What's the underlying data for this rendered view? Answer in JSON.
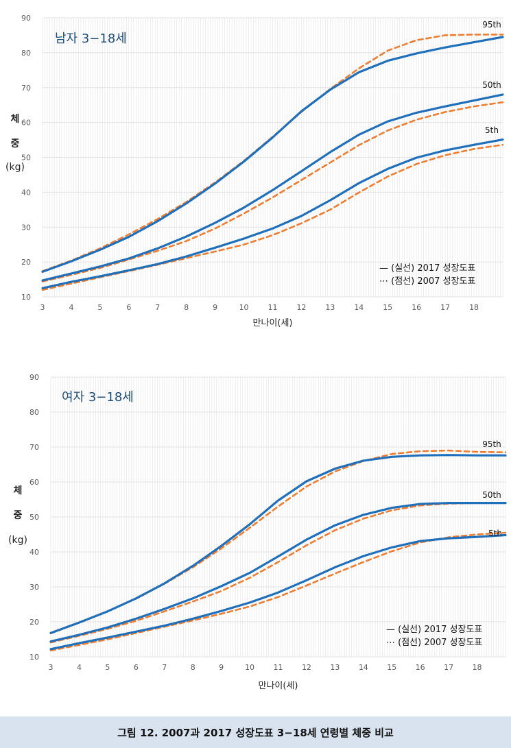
{
  "caption": "그림 12. 2007과 2017 성장도표 3−18세 연령별 체중 비교",
  "colors": {
    "line_2017": "#1f6fba",
    "line_2007": "#ed7d31",
    "grid": "#e3e3e3",
    "axis_text": "#595959"
  },
  "chart_data": [
    {
      "type": "line",
      "title": "남자 3−18세",
      "xlabel": "만나이(세)",
      "ylabel_chars": [
        "체",
        "중",
        "(kg)"
      ],
      "xlim": [
        3,
        19
      ],
      "ylim": [
        10,
        90
      ],
      "x_ticks": [
        3,
        4,
        5,
        6,
        7,
        8,
        9,
        10,
        11,
        12,
        13,
        14,
        15,
        16,
        17,
        18
      ],
      "y_ticks": [
        10,
        20,
        30,
        40,
        50,
        60,
        70,
        80,
        90
      ],
      "legend": [
        "— (실선) 2017 성장도표",
        "⋯ (점선) 2007 성장도표"
      ],
      "legend_position": "bottom-right",
      "percentile_labels": [
        "95th",
        "50th",
        "5th"
      ],
      "x": [
        3,
        4,
        5,
        6,
        7,
        8,
        9,
        10,
        11,
        12,
        13,
        14,
        15,
        16,
        17,
        18,
        19
      ],
      "series": [
        {
          "percentile": "95th",
          "chart": "2017",
          "values": [
            17.2,
            20.2,
            23.5,
            27.2,
            31.7,
            36.8,
            42.5,
            48.8,
            55.7,
            63.2,
            69.4,
            74.4,
            77.7,
            79.8,
            81.5,
            83.0,
            84.5
          ]
        },
        {
          "percentile": "95th",
          "chart": "2007",
          "values": [
            17.4,
            20.4,
            23.9,
            27.9,
            32.3,
            37.2,
            42.8,
            49.0,
            55.9,
            63.0,
            69.6,
            75.5,
            80.6,
            83.6,
            85.0,
            85.2,
            85.2
          ]
        },
        {
          "percentile": "50th",
          "chart": "2017",
          "values": [
            14.7,
            16.7,
            18.7,
            21.0,
            23.9,
            27.3,
            31.2,
            35.6,
            40.6,
            46.0,
            51.5,
            56.5,
            60.3,
            62.8,
            64.6,
            66.3,
            68.0
          ]
        },
        {
          "percentile": "50th",
          "chart": "2007",
          "values": [
            14.4,
            16.3,
            18.3,
            20.7,
            23.2,
            26.0,
            29.6,
            33.9,
            38.5,
            43.5,
            48.5,
            53.5,
            57.7,
            60.8,
            63.0,
            64.6,
            65.8
          ]
        },
        {
          "percentile": "5th",
          "chart": "2017",
          "values": [
            12.5,
            14.3,
            15.9,
            17.6,
            19.4,
            21.6,
            24.1,
            26.7,
            29.6,
            33.2,
            37.7,
            42.6,
            46.7,
            49.9,
            52.0,
            53.6,
            55.1
          ]
        },
        {
          "percentile": "5th",
          "chart": "2007",
          "values": [
            12.0,
            13.8,
            15.6,
            17.4,
            19.2,
            21.1,
            23.0,
            25.0,
            27.7,
            31.1,
            35.0,
            39.9,
            44.5,
            48.1,
            50.6,
            52.4,
            53.6
          ]
        }
      ]
    },
    {
      "type": "line",
      "title": "여자 3−18세",
      "xlabel": "만나이(세)",
      "ylabel_chars": [
        "체",
        "중",
        "(kg)"
      ],
      "xlim": [
        3,
        19
      ],
      "ylim": [
        10,
        90
      ],
      "x_ticks": [
        3,
        4,
        5,
        6,
        7,
        8,
        9,
        10,
        11,
        12,
        13,
        14,
        15,
        16,
        17,
        18
      ],
      "y_ticks": [
        10,
        20,
        30,
        40,
        50,
        60,
        70,
        80,
        90
      ],
      "legend": [
        "— (실선) 2017 성장도표",
        "⋯ (점선) 2007 성장도표"
      ],
      "legend_position": "bottom-right",
      "percentile_labels": [
        "95th",
        "50th",
        "5th"
      ],
      "x": [
        3,
        4,
        5,
        6,
        7,
        8,
        9,
        10,
        11,
        12,
        13,
        14,
        15,
        16,
        17,
        18,
        19
      ],
      "series": [
        {
          "percentile": "95th",
          "chart": "2017",
          "values": [
            16.8,
            19.8,
            23.0,
            26.7,
            31.0,
            36.0,
            41.7,
            47.9,
            54.7,
            60.2,
            63.8,
            66.1,
            67.2,
            67.6,
            67.7,
            67.6,
            67.6
          ]
        },
        {
          "percentile": "95th",
          "chart": "2007",
          "values": [
            16.7,
            19.7,
            23.0,
            26.6,
            30.9,
            35.6,
            41.0,
            46.9,
            53.0,
            58.7,
            63.0,
            66.0,
            68.0,
            68.8,
            69.0,
            68.6,
            68.5
          ]
        },
        {
          "percentile": "50th",
          "chart": "2017",
          "values": [
            14.4,
            16.3,
            18.4,
            20.9,
            23.7,
            26.7,
            30.2,
            34.0,
            38.7,
            43.5,
            47.6,
            50.6,
            52.6,
            53.7,
            54.0,
            54.0,
            54.0
          ]
        },
        {
          "percentile": "50th",
          "chart": "2007",
          "values": [
            14.1,
            16.0,
            18.0,
            20.3,
            23.0,
            25.8,
            28.8,
            32.6,
            37.1,
            41.9,
            46.2,
            49.5,
            51.9,
            53.3,
            53.8,
            54.0,
            54.0
          ]
        },
        {
          "percentile": "5th",
          "chart": "2017",
          "values": [
            12.2,
            13.9,
            15.5,
            17.2,
            18.9,
            20.9,
            23.1,
            25.5,
            28.4,
            31.9,
            35.6,
            38.8,
            41.3,
            43.1,
            43.9,
            44.3,
            44.8
          ]
        },
        {
          "percentile": "5th",
          "chart": "2007",
          "values": [
            11.8,
            13.4,
            15.0,
            16.8,
            18.6,
            20.4,
            22.3,
            24.4,
            27.1,
            30.4,
            33.8,
            37.1,
            40.2,
            42.7,
            44.2,
            45.0,
            45.5
          ]
        }
      ]
    }
  ]
}
